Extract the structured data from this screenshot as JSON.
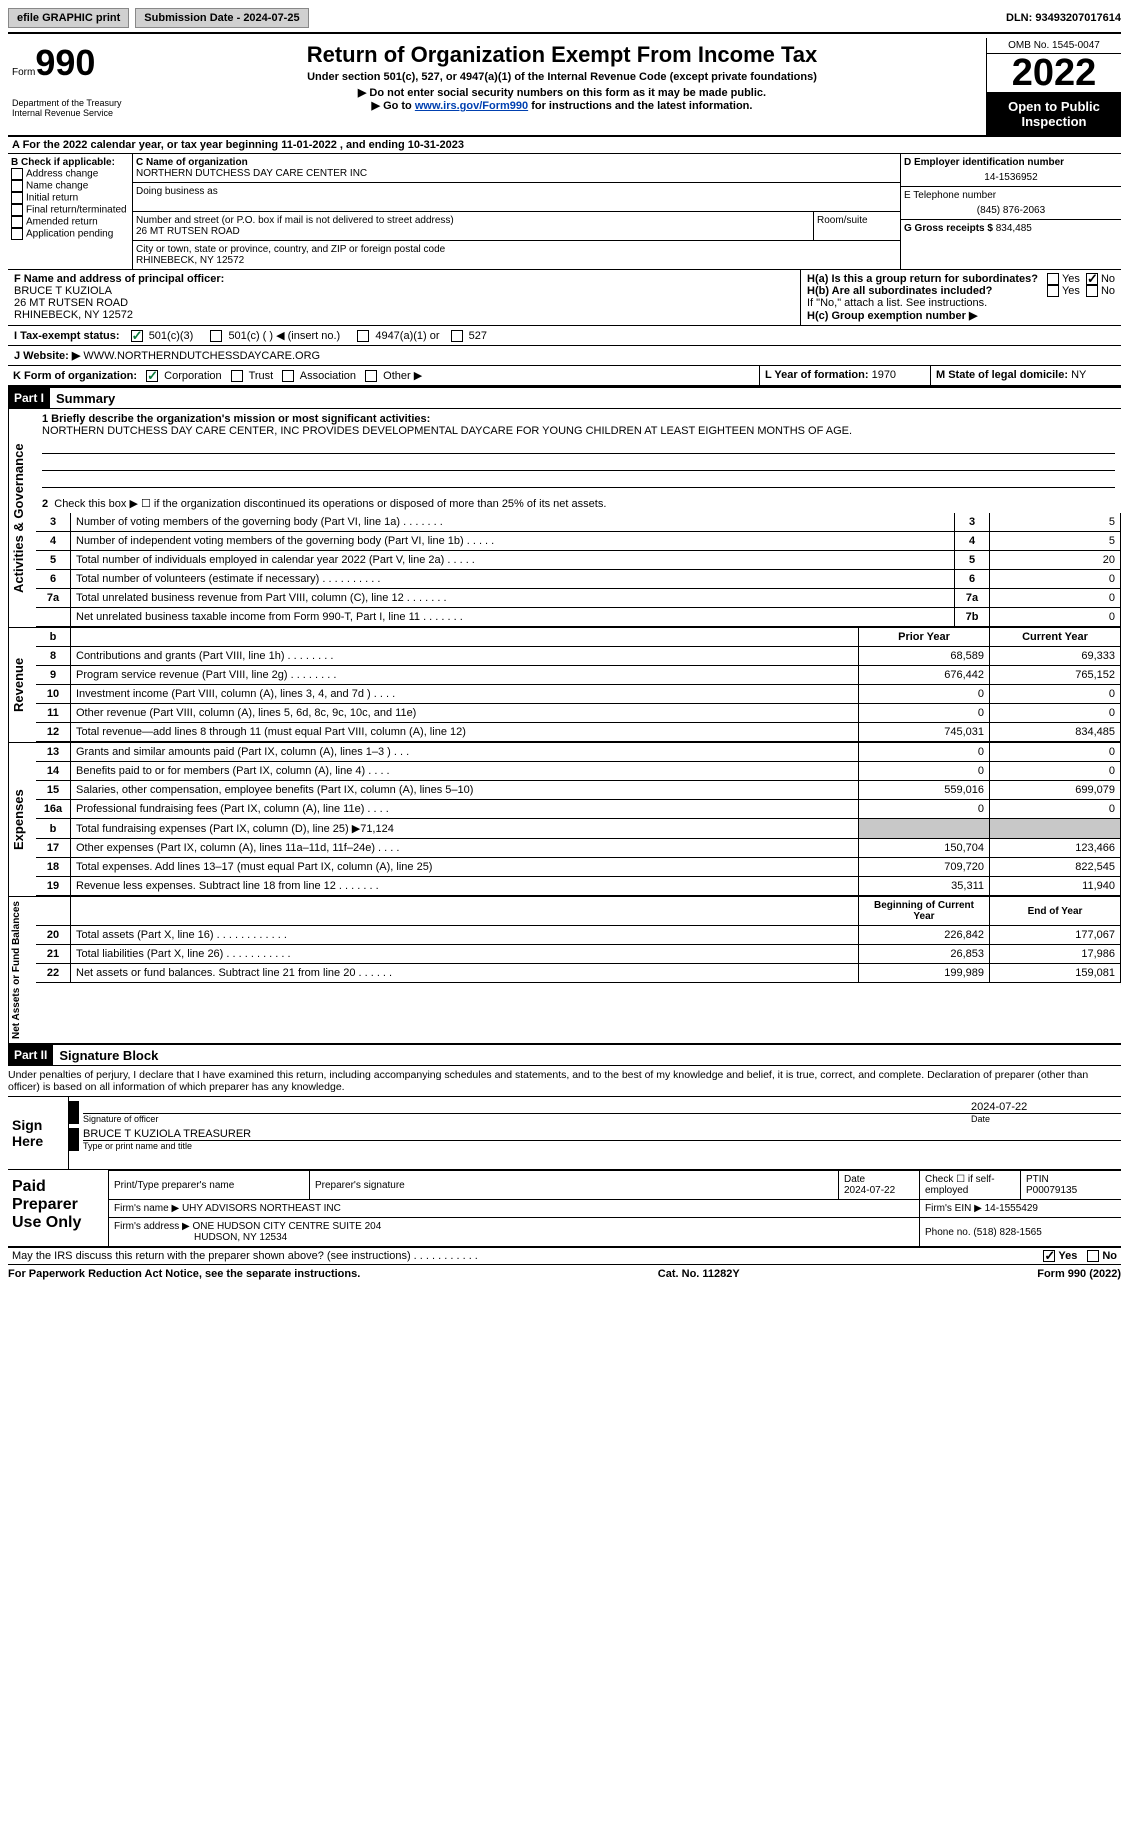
{
  "topbar": {
    "efile": "efile GRAPHIC print",
    "submission": "Submission Date - 2024-07-25",
    "dln": "DLN: 93493207017614"
  },
  "header": {
    "form_word": "Form",
    "form_num": "990",
    "dept": "Department of the Treasury Internal Revenue Service",
    "title": "Return of Organization Exempt From Income Tax",
    "sub1": "Under section 501(c), 527, or 4947(a)(1) of the Internal Revenue Code (except private foundations)",
    "sub2": "▶ Do not enter social security numbers on this form as it may be made public.",
    "sub3_pre": "▶ Go to ",
    "sub3_link": "www.irs.gov/Form990",
    "sub3_post": " for instructions and the latest information.",
    "omb": "OMB No. 1545-0047",
    "year": "2022",
    "inspection": "Open to Public Inspection"
  },
  "row_a": "A For the 2022 calendar year, or tax year beginning 11-01-2022   , and ending 10-31-2023",
  "b": {
    "label": "B Check if applicable:",
    "items": [
      "Address change",
      "Name change",
      "Initial return",
      "Final return/terminated",
      "Amended return",
      "Application pending"
    ],
    "c_label": "C Name of organization",
    "c_name": "NORTHERN DUTCHESS DAY CARE CENTER INC",
    "dba_label": "Doing business as",
    "addr_label": "Number and street (or P.O. box if mail is not delivered to street address)",
    "addr": "26 MT RUTSEN ROAD",
    "room_label": "Room/suite",
    "city_label": "City or town, state or province, country, and ZIP or foreign postal code",
    "city": "RHINEBECK, NY  12572",
    "d_label": "D Employer identification number",
    "d_val": "14-1536952",
    "e_label": "E Telephone number",
    "e_val": "(845) 876-2063",
    "g_label": "G Gross receipts $",
    "g_val": "834,485"
  },
  "f": {
    "label": "F  Name and address of principal officer:",
    "name": "BRUCE T KUZIOLA",
    "addr": "26 MT RUTSEN ROAD",
    "city": "RHINEBECK, NY  12572"
  },
  "h": {
    "a": "H(a)  Is this a group return for subordinates?",
    "b": "H(b)  Are all subordinates included?",
    "b_note": "If \"No,\" attach a list. See instructions.",
    "c": "H(c)  Group exemption number ▶",
    "yes": "Yes",
    "no": "No"
  },
  "i": {
    "label": "I    Tax-exempt status:",
    "opts": [
      "501(c)(3)",
      "501(c) (   ) ◀ (insert no.)",
      "4947(a)(1) or",
      "527"
    ]
  },
  "j": {
    "label": "J   Website: ▶",
    "val": "WWW.NORTHERNDUTCHESSDAYCARE.ORG"
  },
  "k": {
    "label": "K Form of organization:",
    "opts": [
      "Corporation",
      "Trust",
      "Association",
      "Other ▶"
    ]
  },
  "l": {
    "label": "L Year of formation:",
    "val": "1970"
  },
  "m": {
    "label": "M State of legal domicile:",
    "val": "NY"
  },
  "parts": {
    "p1": "Part I",
    "p1_title": "Summary",
    "p2": "Part II",
    "p2_title": "Signature Block"
  },
  "summary": {
    "mission_label": "1   Briefly describe the organization's mission or most significant activities:",
    "mission": "NORTHERN DUTCHESS DAY CARE CENTER, INC PROVIDES DEVELOPMENTAL DAYCARE FOR YOUNG CHILDREN AT LEAST EIGHTEEN MONTHS OF AGE.",
    "line2": "Check this box ▶ ☐  if the organization discontinued its operations or disposed of more than 25% of its net assets.",
    "side_labels": [
      "Activities & Governance",
      "Revenue",
      "Expenses",
      "Net Assets or Fund Balances"
    ],
    "col_headers": {
      "prior": "Prior Year",
      "current": "Current Year",
      "begin": "Beginning of Current Year",
      "end": "End of Year"
    },
    "rows_gov": [
      {
        "n": "3",
        "d": "Number of voting members of the governing body (Part VI, line 1a)   .    .    .    .    .    .    .",
        "box": "3",
        "v": "5"
      },
      {
        "n": "4",
        "d": "Number of independent voting members of the governing body (Part VI, line 1b)  .    .    .    .    .",
        "box": "4",
        "v": "5"
      },
      {
        "n": "5",
        "d": "Total number of individuals employed in calendar year 2022 (Part V, line 2a)   .    .    .    .    .",
        "box": "5",
        "v": "20"
      },
      {
        "n": "6",
        "d": "Total number of volunteers (estimate if necessary)    .    .    .    .    .    .    .    .    .    .",
        "box": "6",
        "v": "0"
      },
      {
        "n": "7a",
        "d": "Total unrelated business revenue from Part VIII, column (C), line 12    .    .    .    .    .    .    .",
        "box": "7a",
        "v": "0"
      },
      {
        "n": "",
        "d": "Net unrelated business taxable income from Form 990-T, Part I, line 11   .    .    .    .    .    .    .",
        "box": "7b",
        "v": "0"
      }
    ],
    "rows_rev": [
      {
        "n": "8",
        "d": "Contributions and grants (Part VIII, line 1h)   .    .    .    .    .    .    .    .",
        "p": "68,589",
        "c": "69,333"
      },
      {
        "n": "9",
        "d": "Program service revenue (Part VIII, line 2g)    .    .    .    .    .    .    .    .",
        "p": "676,442",
        "c": "765,152"
      },
      {
        "n": "10",
        "d": "Investment income (Part VIII, column (A), lines 3, 4, and 7d )   .    .    .    .",
        "p": "0",
        "c": "0"
      },
      {
        "n": "11",
        "d": "Other revenue (Part VIII, column (A), lines 5, 6d, 8c, 9c, 10c, and 11e)",
        "p": "0",
        "c": "0"
      },
      {
        "n": "12",
        "d": "Total revenue—add lines 8 through 11 (must equal Part VIII, column (A), line 12)",
        "p": "745,031",
        "c": "834,485"
      }
    ],
    "rows_exp": [
      {
        "n": "13",
        "d": "Grants and similar amounts paid (Part IX, column (A), lines 1–3 )  .    .    .",
        "p": "0",
        "c": "0"
      },
      {
        "n": "14",
        "d": "Benefits paid to or for members (Part IX, column (A), line 4)  .    .    .    .",
        "p": "0",
        "c": "0"
      },
      {
        "n": "15",
        "d": "Salaries, other compensation, employee benefits (Part IX, column (A), lines 5–10)",
        "p": "559,016",
        "c": "699,079"
      },
      {
        "n": "16a",
        "d": "Professional fundraising fees (Part IX, column (A), line 11e)   .    .    .    .",
        "p": "0",
        "c": "0"
      },
      {
        "n": "b",
        "d": "Total fundraising expenses (Part IX, column (D), line 25) ▶71,124",
        "p": "",
        "c": "",
        "shade": true
      },
      {
        "n": "17",
        "d": "Other expenses (Part IX, column (A), lines 11a–11d, 11f–24e)   .    .    .    .",
        "p": "150,704",
        "c": "123,466"
      },
      {
        "n": "18",
        "d": "Total expenses. Add lines 13–17 (must equal Part IX, column (A), line 25)",
        "p": "709,720",
        "c": "822,545"
      },
      {
        "n": "19",
        "d": "Revenue less expenses. Subtract line 18 from line 12  .    .    .    .    .    .    .",
        "p": "35,311",
        "c": "11,940"
      }
    ],
    "rows_net": [
      {
        "n": "20",
        "d": "Total assets (Part X, line 16)  .    .    .    .    .    .    .    .    .    .    .    .",
        "p": "226,842",
        "c": "177,067"
      },
      {
        "n": "21",
        "d": "Total liabilities (Part X, line 26)  .    .    .    .    .    .    .    .    .    .    .",
        "p": "26,853",
        "c": "17,986"
      },
      {
        "n": "22",
        "d": "Net assets or fund balances. Subtract line 21 from line 20  .    .    .    .    .    .",
        "p": "199,989",
        "c": "159,081"
      }
    ]
  },
  "penalty": "Under penalties of perjury, I declare that I have examined this return, including accompanying schedules and statements, and to the best of my knowledge and belief, it is true, correct, and complete. Declaration of preparer (other than officer) is based on all information of which preparer has any knowledge.",
  "sign": {
    "label": "Sign Here",
    "sig_of_officer": "Signature of officer",
    "date_label": "Date",
    "date": "2024-07-22",
    "name": "BRUCE T KUZIOLA  TREASURER",
    "name_label": "Type or print name and title"
  },
  "paid": {
    "label": "Paid Preparer Use Only",
    "h1": "Print/Type preparer's name",
    "h2": "Preparer's signature",
    "h3": "Date",
    "h3v": "2024-07-22",
    "h4": "Check ☐ if self-employed",
    "h5": "PTIN",
    "h5v": "P00079135",
    "firm_label": "Firm's name    ▶",
    "firm": "UHY ADVISORS NORTHEAST INC",
    "ein_label": "Firm's EIN ▶",
    "ein": "14-1555429",
    "addr_label": "Firm's address ▶",
    "addr1": "ONE HUDSON CITY CENTRE SUITE 204",
    "addr2": "HUDSON, NY  12534",
    "phone_label": "Phone no.",
    "phone": "(518) 828-1565"
  },
  "discuss": "May the IRS discuss this return with the preparer shown above? (see instructions)   .    .    .    .    .    .    .    .    .    .    .",
  "footer": {
    "left": "For Paperwork Reduction Act Notice, see the separate instructions.",
    "mid": "Cat. No. 11282Y",
    "right": "Form 990 (2022)"
  }
}
